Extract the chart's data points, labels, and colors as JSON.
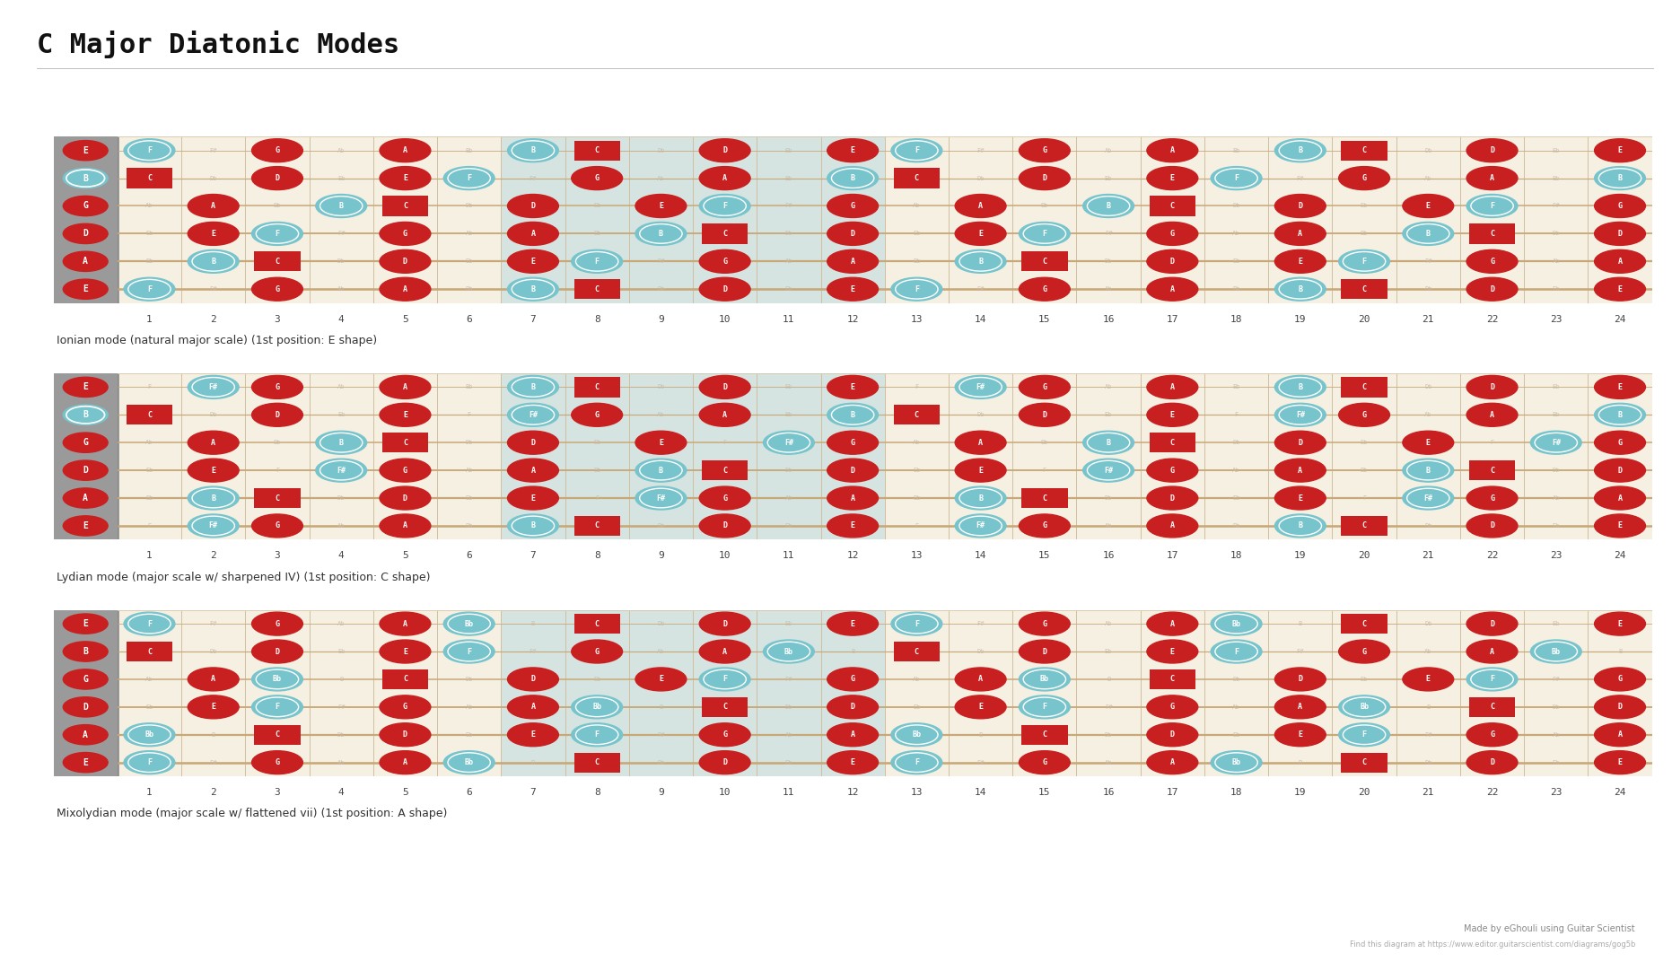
{
  "title": "C Major Diatonic Modes",
  "bg_color": "#ffffff",
  "fretboard_bg": "#f5f0e2",
  "fret_line_color": "#d0bfa0",
  "string_color": "#c8a878",
  "highlight_bg": "#c0dde0",
  "label_panel_color": "#9a9a9a",
  "dot_red": "#c82020",
  "dot_blue": "#78c4cc",
  "faded_text_color": "#c8baa8",
  "num_frets": 24,
  "num_strings": 6,
  "open_strings": [
    "E",
    "B",
    "G",
    "D",
    "A",
    "E"
  ],
  "chromatic": [
    "C",
    "Db",
    "D",
    "Eb",
    "E",
    "F",
    "F#",
    "G",
    "Ab",
    "A",
    "Bb",
    "B"
  ],
  "modes": [
    {
      "name": "Ionian mode (natural major scale) (1st position: E shape)",
      "scale_notes": [
        "C",
        "D",
        "E",
        "F",
        "G",
        "A",
        "B"
      ],
      "root_notes": [
        "C"
      ],
      "blue_notes": [
        "F",
        "B"
      ],
      "highlight_frets": [
        7,
        8,
        9,
        10,
        11,
        12
      ]
    },
    {
      "name": "Lydian mode (major scale w/ sharpened IV) (1st position: C shape)",
      "scale_notes": [
        "C",
        "D",
        "E",
        "F#",
        "G",
        "A",
        "B"
      ],
      "root_notes": [
        "C"
      ],
      "blue_notes": [
        "F#",
        "B"
      ],
      "highlight_frets": [
        7,
        8,
        9,
        10,
        11,
        12
      ]
    },
    {
      "name": "Mixolydian mode (major scale w/ flattened vii) (1st position: A shape)",
      "scale_notes": [
        "C",
        "D",
        "E",
        "F",
        "G",
        "A",
        "Bb"
      ],
      "root_notes": [
        "C"
      ],
      "blue_notes": [
        "F",
        "Bb"
      ],
      "highlight_frets": [
        7,
        8,
        9,
        10,
        11,
        12
      ]
    }
  ],
  "footer_made": "Made by eGhouli using Guitar Scientist",
  "footer_find": "Find this diagram at https://www.editor.guitarscientist.com/diagrams/gog5b",
  "title_fontsize": 22,
  "caption_fontsize": 9,
  "fret_num_fontsize": 8,
  "note_fontsize": 6,
  "label_fontsize": 7
}
